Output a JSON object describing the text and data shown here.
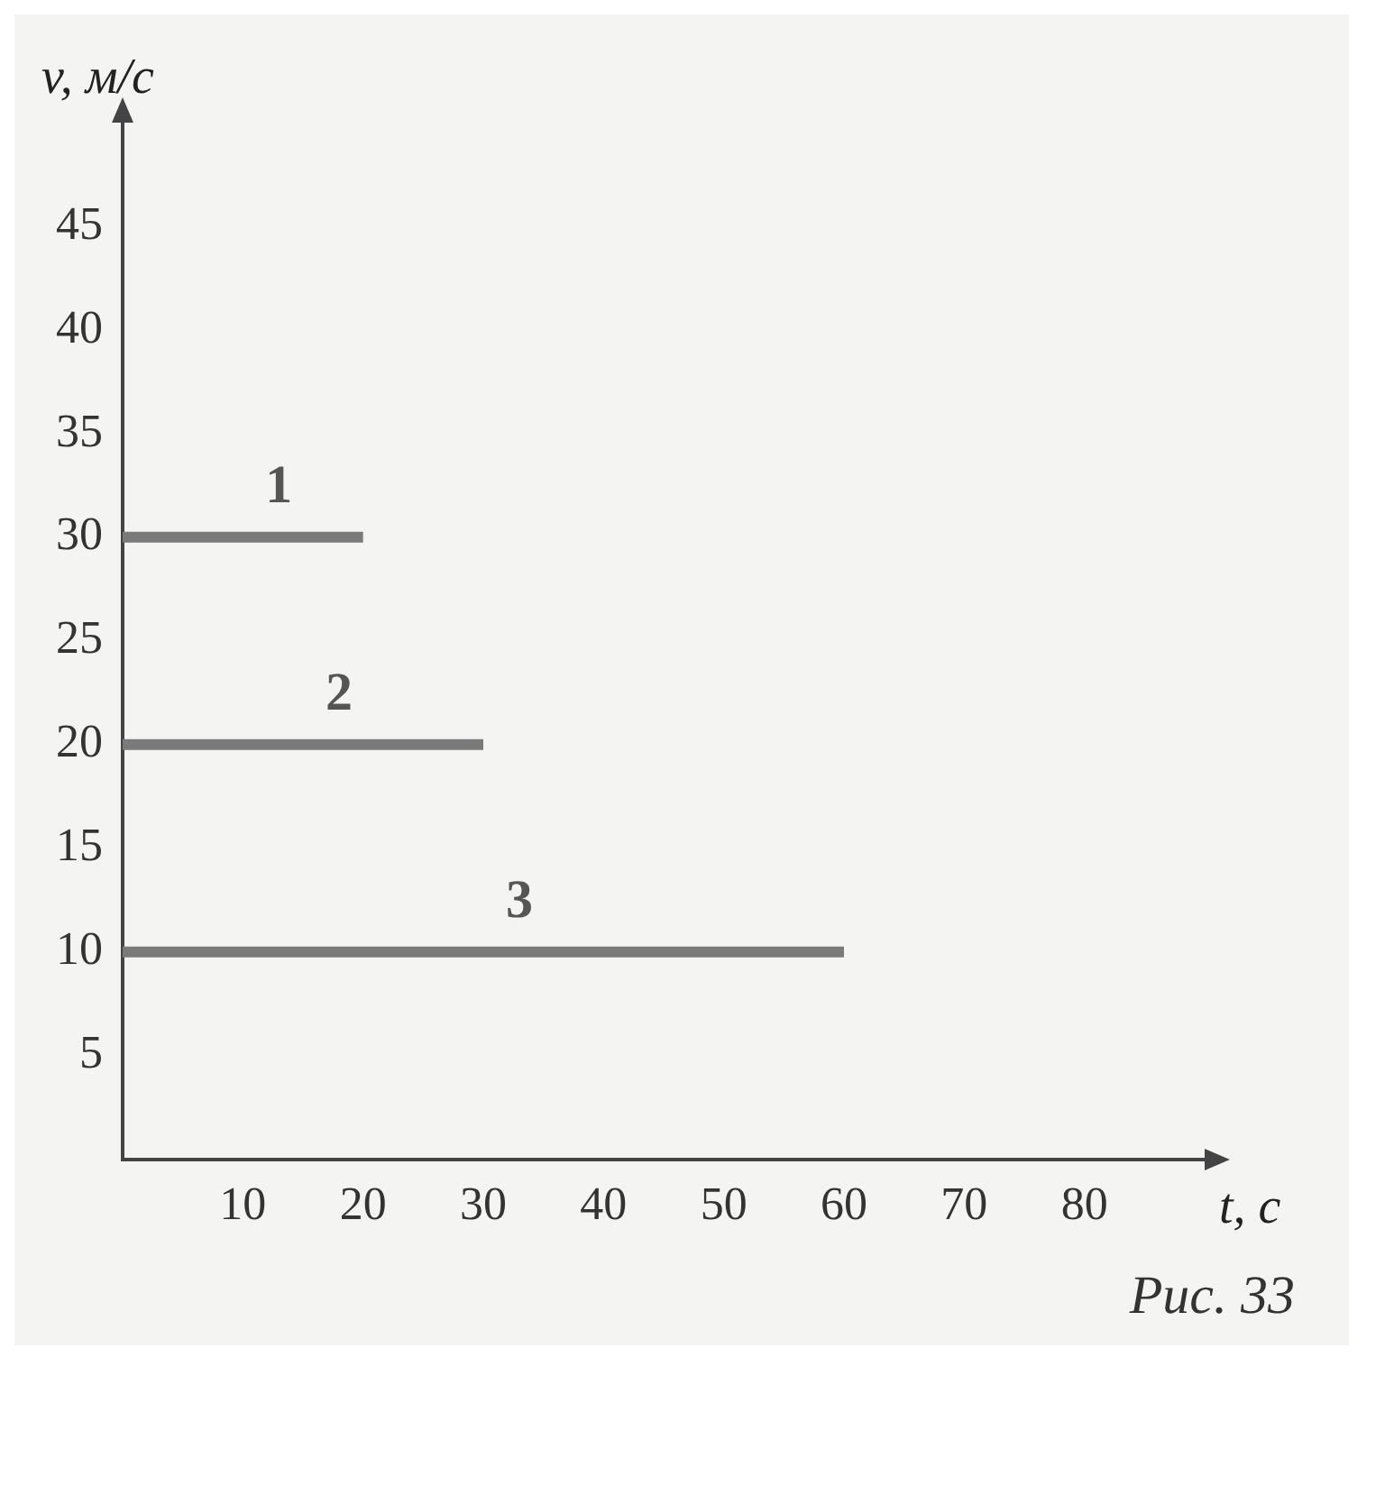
{
  "chart_data": {
    "type": "line",
    "xlabel": "t, с",
    "ylabel": "v, м/с",
    "xlim": [
      0,
      90
    ],
    "ylim": [
      0,
      50
    ],
    "xticks": [
      10,
      20,
      30,
      40,
      50,
      60,
      70,
      80
    ],
    "yticks": [
      5,
      10,
      15,
      20,
      25,
      30,
      35,
      40,
      45
    ],
    "series": [
      {
        "name": "1",
        "color": "#7a7a7a",
        "x": [
          0,
          20
        ],
        "values": [
          30,
          30
        ]
      },
      {
        "name": "2",
        "color": "#7a7a7a",
        "x": [
          0,
          30
        ],
        "values": [
          20,
          20
        ]
      },
      {
        "name": "3",
        "color": "#7a7a7a",
        "x": [
          0,
          60
        ],
        "values": [
          10,
          10
        ]
      }
    ],
    "grid": false,
    "legend": false,
    "marker": "none",
    "line_style": "solid",
    "annotations": [
      "Рис. 33"
    ]
  }
}
